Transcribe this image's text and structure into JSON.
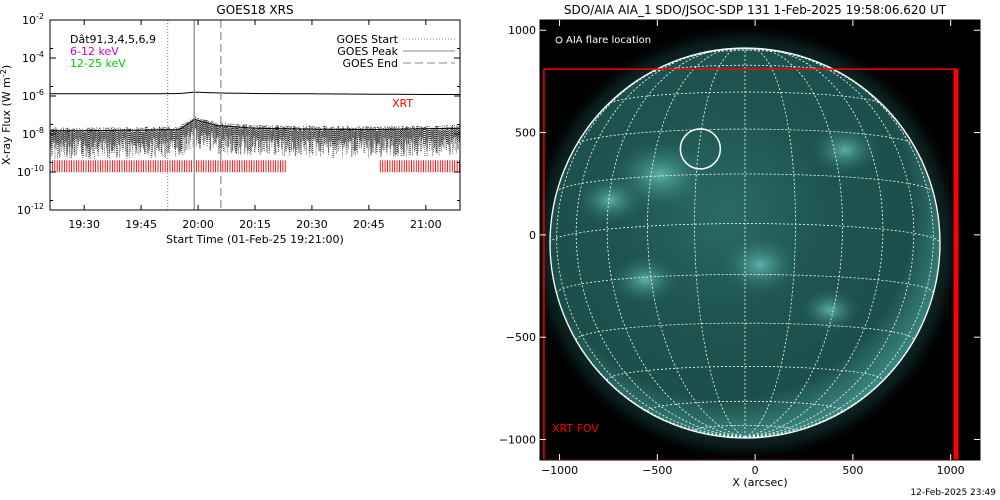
{
  "footer_timestamp": "12-Feb-2025 23:49",
  "chart_data": [
    {
      "type": "line",
      "title": "GOES18 XRS",
      "xlabel": "Start Time (01-Feb-25 19:21:00)",
      "ylabel": "X-ray Flux (W m⁻²)",
      "ylabel_main": "X-ray Flux (W m",
      "ylabel_sup": "-2",
      "ylabel_close": ")",
      "yscale": "log",
      "ylim": [
        1e-12,
        0.01
      ],
      "xlim": [
        "19:21",
        "21:09"
      ],
      "xticks": [
        "19:30",
        "19:45",
        "20:00",
        "20:15",
        "20:30",
        "20:45",
        "21:00"
      ],
      "yticks": [
        {
          "value": 1e-12,
          "base": "10",
          "exp": "-12"
        },
        {
          "value": 1e-10,
          "base": "10",
          "exp": "-10"
        },
        {
          "value": 1e-08,
          "base": "10",
          "exp": "-8"
        },
        {
          "value": 1e-06,
          "base": "10",
          "exp": "-6"
        },
        {
          "value": 0.0001,
          "base": "10",
          "exp": "-4"
        },
        {
          "value": 0.01,
          "base": "10",
          "exp": "-2"
        }
      ],
      "channels_label": "Dât91,3,4,5,6,9",
      "legend_left": [
        {
          "label": "6-12 keV",
          "color": "#cc00cc"
        },
        {
          "label": "12-25 keV",
          "color": "#00cc00"
        }
      ],
      "legend_right": [
        {
          "label": "GOES Start",
          "style": "dotted"
        },
        {
          "label": "GOES Peak",
          "style": "solid"
        },
        {
          "label": "GOES End",
          "style": "dashed"
        }
      ],
      "event_lines": {
        "start": "19:52",
        "peak": "19:59",
        "end": "20:06"
      },
      "xrt_label": "XRT",
      "xrt_color": "#ff0000",
      "xrt_coverage": [
        [
          "19:21",
          "20:23"
        ],
        [
          "20:48",
          "21:09"
        ]
      ],
      "series": [
        {
          "name": "GOES18 XRS long",
          "x": [
            "19:21",
            "19:30",
            "19:45",
            "19:55",
            "19:57",
            "19:59",
            "20:01",
            "20:05",
            "20:15",
            "20:30",
            "20:45",
            "21:00",
            "21:09"
          ],
          "values": [
            1.3e-06,
            1.3e-06,
            1.3e-06,
            1.35e-06,
            1.45e-06,
            1.6e-06,
            1.55e-06,
            1.45e-06,
            1.35e-06,
            1.3e-06,
            1.25e-06,
            1.2e-06,
            1.2e-06
          ]
        },
        {
          "name": "GOES18 XRS short",
          "x": [
            "19:21",
            "19:30",
            "19:45",
            "19:55",
            "19:57",
            "19:59",
            "20:01",
            "20:05",
            "20:15",
            "20:30",
            "20:45",
            "21:00",
            "21:09"
          ],
          "values": [
            1.5e-08,
            1.5e-08,
            1.6e-08,
            1.7e-08,
            3e-08,
            6e-08,
            4.5e-08,
            2.8e-08,
            2e-08,
            1.8e-08,
            1.7e-08,
            1.9e-08,
            2e-08
          ]
        }
      ]
    },
    {
      "type": "image",
      "title": "SDO/AIA AIA_1 SDO/JSOC-SDP 131  1-Feb-2025 19:58:06.620 UT",
      "xlabel": "X (arcsec)",
      "xlim": [
        -1100,
        1150
      ],
      "ylim": [
        -1100,
        1050
      ],
      "xticks": [
        "-1000",
        "-500",
        "0",
        "500",
        "1000"
      ],
      "yticks": [
        "1000",
        "500",
        "0",
        "-500",
        "-1000"
      ],
      "legend_label": "AIA flare location",
      "flare_location": [
        -280,
        420
      ],
      "fov_label": "XRT FOV",
      "fov_color": "#ff0000",
      "xrt_fov": {
        "x": [
          -1080,
          1030
        ],
        "y": [
          -1100,
          810
        ]
      },
      "solar_radius_arcsec": 975
    }
  ]
}
